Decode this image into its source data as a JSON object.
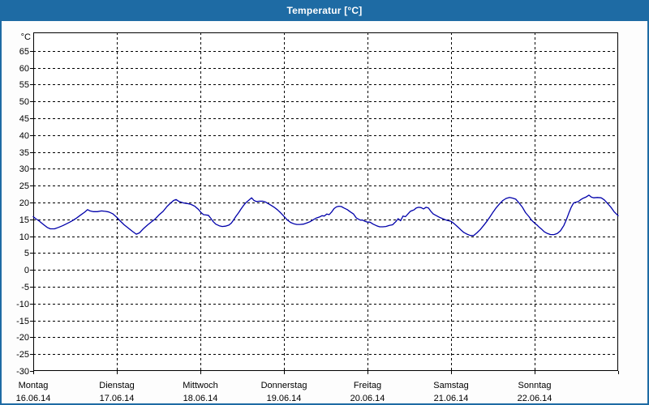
{
  "window": {
    "title": "Temperatur [°C]"
  },
  "colors": {
    "titlebar_bg": "#1e6ba4",
    "titlebar_text": "#ffffff",
    "frame": "#1e6ba4",
    "plot_bg": "#ffffff",
    "plot_border": "#000000",
    "grid": "#000000",
    "curve": "#0000aa"
  },
  "chart_data": {
    "type": "line",
    "title": "Temperatur [°C]",
    "ylabel": "°C",
    "ylim": [
      -30,
      70.5
    ],
    "y_ticks": [
      65,
      60,
      55,
      50,
      45,
      40,
      35,
      30,
      25,
      20,
      15,
      10,
      5,
      0,
      -5,
      -10,
      -15,
      -20,
      -25,
      -30
    ],
    "grid": {
      "style": "dashed",
      "h_step": 5,
      "v_step_hours": 24
    },
    "x_axis": {
      "unit": "hours",
      "range": [
        0,
        168
      ],
      "day_ticks_hours": [
        0,
        24,
        48,
        72,
        96,
        120,
        144,
        168
      ]
    },
    "days": [
      {
        "name": "Montag",
        "date": "16.06.14"
      },
      {
        "name": "Dienstag",
        "date": "17.06.14"
      },
      {
        "name": "Mittwoch",
        "date": "18.06.14"
      },
      {
        "name": "Donnerstag",
        "date": "19.06.14"
      },
      {
        "name": "Freitag",
        "date": "20.06.14"
      },
      {
        "name": "Samstag",
        "date": "21.06.14"
      },
      {
        "name": "Sonntag",
        "date": "22.06.14"
      }
    ],
    "series": [
      {
        "name": "Temperatur",
        "color": "#0000aa",
        "points": [
          [
            0,
            15.8
          ],
          [
            0.7,
            15.2
          ],
          [
            1.6,
            14.6
          ],
          [
            2.8,
            13.6
          ],
          [
            4,
            12.6
          ],
          [
            4.9,
            12.2
          ],
          [
            6.1,
            12.2
          ],
          [
            7.2,
            12.6
          ],
          [
            8.4,
            13.1
          ],
          [
            9.6,
            13.7
          ],
          [
            10.5,
            14.2
          ],
          [
            11.4,
            14.7
          ],
          [
            12.3,
            15.3
          ],
          [
            13.5,
            16.2
          ],
          [
            14.7,
            17.1
          ],
          [
            15.6,
            17.9
          ],
          [
            16.3,
            17.5
          ],
          [
            17.2,
            17.3
          ],
          [
            18.4,
            17.3
          ],
          [
            19.6,
            17.5
          ],
          [
            20.7,
            17.4
          ],
          [
            21.7,
            17.2
          ],
          [
            22.8,
            16.7
          ],
          [
            24,
            15.6
          ],
          [
            24.9,
            14.6
          ],
          [
            26.1,
            13.4
          ],
          [
            27.3,
            12.4
          ],
          [
            28.4,
            11.5
          ],
          [
            29.6,
            10.6
          ],
          [
            30.5,
            11.0
          ],
          [
            31.7,
            12.3
          ],
          [
            32.9,
            13.4
          ],
          [
            34,
            14.3
          ],
          [
            35,
            15.1
          ],
          [
            36.1,
            16.3
          ],
          [
            37.3,
            17.4
          ],
          [
            38.4,
            18.8
          ],
          [
            39.4,
            19.8
          ],
          [
            40.3,
            20.6
          ],
          [
            41,
            20.9
          ],
          [
            41.9,
            20.3
          ],
          [
            43.1,
            19.9
          ],
          [
            44.3,
            19.7
          ],
          [
            45.4,
            19.4
          ],
          [
            46.4,
            18.9
          ],
          [
            47.5,
            17.9
          ],
          [
            48.2,
            17.0
          ],
          [
            48.9,
            16.4
          ],
          [
            49.6,
            16.3
          ],
          [
            50.3,
            16.2
          ],
          [
            51,
            15.3
          ],
          [
            51.7,
            14.3
          ],
          [
            52.4,
            13.6
          ],
          [
            53.4,
            13.1
          ],
          [
            54.3,
            12.9
          ],
          [
            55.2,
            13.0
          ],
          [
            56.2,
            13.3
          ],
          [
            56.9,
            13.9
          ],
          [
            57.5,
            14.8
          ],
          [
            58.2,
            15.9
          ],
          [
            59,
            17.0
          ],
          [
            59.7,
            18.1
          ],
          [
            60.3,
            19.0
          ],
          [
            61,
            19.9
          ],
          [
            61.7,
            20.5
          ],
          [
            62.7,
            21.4
          ],
          [
            63.4,
            20.6
          ],
          [
            64.1,
            20.3
          ],
          [
            65,
            20.4
          ],
          [
            65.9,
            20.4
          ],
          [
            66.6,
            20.2
          ],
          [
            67.3,
            19.8
          ],
          [
            68.3,
            19.2
          ],
          [
            69.2,
            18.6
          ],
          [
            70.1,
            17.9
          ],
          [
            71.1,
            16.9
          ],
          [
            72,
            15.9
          ],
          [
            72.9,
            14.9
          ],
          [
            73.9,
            14.1
          ],
          [
            74.8,
            13.7
          ],
          [
            75.7,
            13.5
          ],
          [
            76.6,
            13.5
          ],
          [
            77.6,
            13.6
          ],
          [
            78.5,
            13.9
          ],
          [
            79.5,
            14.3
          ],
          [
            80.4,
            14.9
          ],
          [
            81.3,
            15.4
          ],
          [
            82.2,
            15.7
          ],
          [
            82.9,
            16.1
          ],
          [
            83.6,
            16.0
          ],
          [
            84.3,
            16.6
          ],
          [
            85,
            16.4
          ],
          [
            85.7,
            17.2
          ],
          [
            86.4,
            18.2
          ],
          [
            87.1,
            18.7
          ],
          [
            87.8,
            18.9
          ],
          [
            88.5,
            18.8
          ],
          [
            89.2,
            18.4
          ],
          [
            90.2,
            17.9
          ],
          [
            91.1,
            17.2
          ],
          [
            92,
            16.6
          ],
          [
            92.8,
            15.4
          ],
          [
            93.9,
            14.8
          ],
          [
            94.6,
            14.8
          ],
          [
            95.3,
            14.4
          ],
          [
            96,
            14.2
          ],
          [
            96.7,
            14.2
          ],
          [
            97.6,
            13.6
          ],
          [
            98.6,
            13.1
          ],
          [
            99.5,
            12.8
          ],
          [
            100.4,
            12.8
          ],
          [
            101.3,
            12.9
          ],
          [
            102.3,
            13.2
          ],
          [
            103.2,
            13.4
          ],
          [
            104.1,
            14.3
          ],
          [
            104.8,
            15.2
          ],
          [
            105.5,
            14.6
          ],
          [
            106.2,
            16.0
          ],
          [
            106.9,
            15.8
          ],
          [
            107.6,
            16.6
          ],
          [
            108.3,
            17.4
          ],
          [
            109.3,
            17.8
          ],
          [
            110,
            18.4
          ],
          [
            110.7,
            18.6
          ],
          [
            111.4,
            18.5
          ],
          [
            112.1,
            18.1
          ],
          [
            112.8,
            18.6
          ],
          [
            113.5,
            18.4
          ],
          [
            114.2,
            17.4
          ],
          [
            114.9,
            16.6
          ],
          [
            115.8,
            16.1
          ],
          [
            116.7,
            15.6
          ],
          [
            117.6,
            15.2
          ],
          [
            118.6,
            14.8
          ],
          [
            119.3,
            14.6
          ],
          [
            120,
            14.4
          ],
          [
            120.9,
            13.7
          ],
          [
            121.8,
            12.9
          ],
          [
            122.8,
            11.9
          ],
          [
            123.7,
            11.1
          ],
          [
            124.6,
            10.6
          ],
          [
            125.6,
            10.2
          ],
          [
            126.5,
            10.2
          ],
          [
            127.4,
            11.0
          ],
          [
            128.4,
            12.0
          ],
          [
            129.3,
            13.1
          ],
          [
            130.2,
            14.3
          ],
          [
            131.2,
            15.8
          ],
          [
            132.1,
            17.2
          ],
          [
            133,
            18.5
          ],
          [
            134,
            19.7
          ],
          [
            134.9,
            20.6
          ],
          [
            135.8,
            21.2
          ],
          [
            136.8,
            21.5
          ],
          [
            137.7,
            21.3
          ],
          [
            138.6,
            21.0
          ],
          [
            139.6,
            19.8
          ],
          [
            140.5,
            18.6
          ],
          [
            141.4,
            17.0
          ],
          [
            142.4,
            15.8
          ],
          [
            143,
            14.9
          ],
          [
            144,
            13.9
          ],
          [
            144.7,
            13.3
          ],
          [
            145.4,
            12.6
          ],
          [
            146.1,
            12.0
          ],
          [
            146.8,
            11.3
          ],
          [
            147.7,
            10.8
          ],
          [
            148.6,
            10.5
          ],
          [
            149.6,
            10.5
          ],
          [
            150.5,
            10.8
          ],
          [
            151.4,
            11.6
          ],
          [
            152.4,
            13.2
          ],
          [
            153.1,
            14.9
          ],
          [
            153.8,
            16.8
          ],
          [
            154.5,
            18.6
          ],
          [
            155.2,
            19.9
          ],
          [
            155.9,
            20.1
          ],
          [
            156.6,
            20.3
          ],
          [
            157.3,
            20.9
          ],
          [
            158,
            21.3
          ],
          [
            158.7,
            21.6
          ],
          [
            159.6,
            22.2
          ],
          [
            160.3,
            21.6
          ],
          [
            161,
            21.4
          ],
          [
            162,
            21.5
          ],
          [
            163.1,
            21.4
          ],
          [
            164,
            20.8
          ],
          [
            165,
            19.7
          ],
          [
            166,
            18.5
          ],
          [
            166.8,
            17.3
          ],
          [
            168,
            16.1
          ]
        ]
      }
    ]
  }
}
